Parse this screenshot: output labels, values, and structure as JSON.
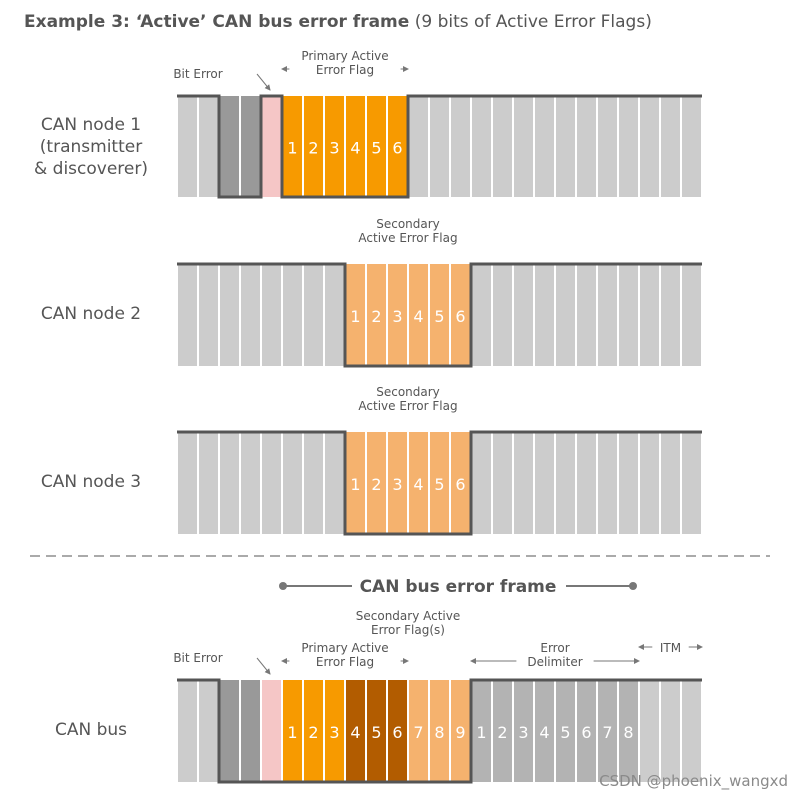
{
  "title": {
    "bold": "Example 3: ‘Active’ CAN bus error frame",
    "normal": "(9 bits of Active Error Flags)"
  },
  "rows": [
    {
      "label": "CAN node 1\n(transmitter\n& discoverer)",
      "bits": [
        "g",
        "g",
        "d",
        "d",
        "e",
        "o",
        "o",
        "o",
        "o",
        "o",
        "o",
        "g",
        "g",
        "g",
        "g",
        "g",
        "g",
        "g",
        "g",
        "g",
        "g",
        "g",
        "g",
        "g",
        "g"
      ],
      "level": [
        1,
        1,
        0,
        0,
        1,
        0,
        0,
        0,
        0,
        0,
        0,
        1,
        1,
        1,
        1,
        1,
        1,
        1,
        1,
        1,
        1,
        1,
        1,
        1,
        1
      ],
      "numbers": [
        "",
        "",
        "",
        "",
        "",
        "1",
        "2",
        "3",
        "4",
        "5",
        "6",
        "",
        "",
        "",
        "",
        "",
        "",
        "",
        "",
        "",
        "",
        "",
        "",
        "",
        ""
      ],
      "annotations": [
        {
          "name": "bit-error",
          "text": "Bit Error",
          "arrow": "diag"
        },
        {
          "name": "primary-active-error-flag",
          "text": "Primary Active\nError Flag",
          "arrow": "bracket",
          "from": 5,
          "to": 10
        }
      ]
    },
    {
      "label": "CAN node 2",
      "bits": [
        "g",
        "g",
        "g",
        "g",
        "g",
        "g",
        "g",
        "g",
        "p",
        "p",
        "p",
        "p",
        "p",
        "p",
        "g",
        "g",
        "g",
        "g",
        "g",
        "g",
        "g",
        "g",
        "g",
        "g",
        "g"
      ],
      "level": [
        1,
        1,
        1,
        1,
        1,
        1,
        1,
        1,
        0,
        0,
        0,
        0,
        0,
        0,
        1,
        1,
        1,
        1,
        1,
        1,
        1,
        1,
        1,
        1,
        1
      ],
      "numbers": [
        "",
        "",
        "",
        "",
        "",
        "",
        "",
        "",
        "1",
        "2",
        "3",
        "4",
        "5",
        "6",
        "",
        "",
        "",
        "",
        "",
        "",
        "",
        "",
        "",
        "",
        ""
      ],
      "annotations": [
        {
          "name": "secondary-active-error-flag",
          "text": "Secondary\nActive Error Flag",
          "arrow": "bracket",
          "from": 8,
          "to": 13
        }
      ]
    },
    {
      "label": "CAN node 3",
      "bits": [
        "g",
        "g",
        "g",
        "g",
        "g",
        "g",
        "g",
        "g",
        "p",
        "p",
        "p",
        "p",
        "p",
        "p",
        "g",
        "g",
        "g",
        "g",
        "g",
        "g",
        "g",
        "g",
        "g",
        "g",
        "g"
      ],
      "level": [
        1,
        1,
        1,
        1,
        1,
        1,
        1,
        1,
        0,
        0,
        0,
        0,
        0,
        0,
        1,
        1,
        1,
        1,
        1,
        1,
        1,
        1,
        1,
        1,
        1
      ],
      "numbers": [
        "",
        "",
        "",
        "",
        "",
        "",
        "",
        "",
        "1",
        "2",
        "3",
        "4",
        "5",
        "6",
        "",
        "",
        "",
        "",
        "",
        "",
        "",
        "",
        "",
        "",
        ""
      ],
      "annotations": [
        {
          "name": "secondary-active-error-flag",
          "text": "Secondary\nActive Error Flag",
          "arrow": "bracket",
          "from": 8,
          "to": 13
        }
      ]
    },
    {
      "label": "CAN bus",
      "bits": [
        "g",
        "g",
        "d",
        "d",
        "e",
        "o",
        "o",
        "o",
        "b",
        "b",
        "b",
        "p",
        "p",
        "p",
        "m",
        "m",
        "m",
        "m",
        "m",
        "m",
        "m",
        "m",
        "g",
        "g",
        "g"
      ],
      "level": [
        1,
        1,
        0,
        0,
        0,
        0,
        0,
        0,
        0,
        0,
        0,
        0,
        0,
        0,
        1,
        1,
        1,
        1,
        1,
        1,
        1,
        1,
        1,
        1,
        1
      ],
      "numbers": [
        "",
        "",
        "",
        "",
        "",
        "1",
        "2",
        "3",
        "4",
        "5",
        "6",
        "7",
        "8",
        "9",
        "1",
        "2",
        "3",
        "4",
        "5",
        "6",
        "7",
        "8",
        "",
        "",
        ""
      ],
      "annotations": [
        {
          "name": "bit-error",
          "text": "Bit Error",
          "arrow": "diag"
        },
        {
          "name": "primary-active-error-flag",
          "text": "Primary Active\nError Flag",
          "arrow": "bracket",
          "from": 5,
          "to": 10
        },
        {
          "name": "secondary-active-error-flags",
          "text": "Secondary Active\nError Flag(s)",
          "arrow": "bracket",
          "from": 8,
          "to": 13
        },
        {
          "name": "error-delimiter",
          "text": "Error\nDelimiter",
          "arrow": "bracket",
          "from": 14,
          "to": 21
        },
        {
          "name": "itm",
          "text": "ITM",
          "arrow": "bracket",
          "from": 22,
          "to": 24
        }
      ]
    }
  ],
  "bus_frame_label": "CAN bus error frame",
  "watermark": "CSDN @phoenix_wangxd",
  "colors": {
    "g": "#cccccc",
    "d": "#999999",
    "e": "#f5c6c6",
    "o": "#f79a00",
    "p": "#f5b26e",
    "b": "#b25c00",
    "m": "#b3b3b3",
    "line": "#555555",
    "text": "#555555"
  }
}
